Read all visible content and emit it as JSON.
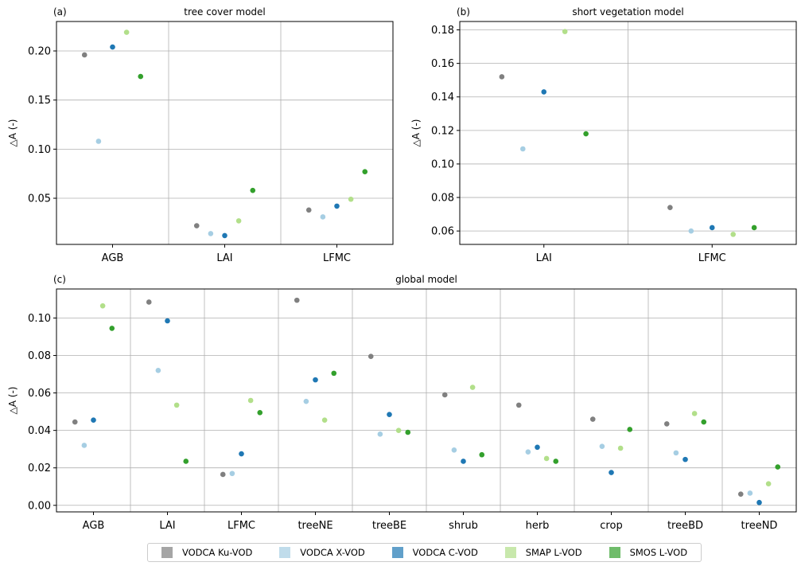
{
  "series": [
    {
      "name": "VODCA Ku-VOD",
      "color": "#808080"
    },
    {
      "name": "VODCA X-VOD",
      "color": "#a6cee3"
    },
    {
      "name": "VODCA C-VOD",
      "color": "#1f78b4"
    },
    {
      "name": "SMAP L-VOD",
      "color": "#b2df8a"
    },
    {
      "name": "SMOS L-VOD",
      "color": "#33a02c"
    }
  ],
  "chart_data": [
    {
      "type": "scatter",
      "panel_label": "(a)",
      "title": "tree cover model",
      "ylabel": "△A (-)",
      "categories": [
        "AGB",
        "LAI",
        "LFMC"
      ],
      "ylim": [
        0.003,
        0.23
      ],
      "yticks": [
        0.05,
        0.1,
        0.15,
        0.2
      ],
      "ytick_labels": [
        "0.05",
        "0.10",
        "0.15",
        "0.20"
      ],
      "grid": true,
      "series": [
        {
          "name": "VODCA Ku-VOD",
          "values": [
            0.196,
            0.022,
            0.038
          ]
        },
        {
          "name": "VODCA X-VOD",
          "values": [
            0.108,
            0.014,
            0.031
          ]
        },
        {
          "name": "VODCA C-VOD",
          "values": [
            0.204,
            0.012,
            0.042
          ]
        },
        {
          "name": "SMAP L-VOD",
          "values": [
            0.219,
            0.027,
            0.049
          ]
        },
        {
          "name": "SMOS L-VOD",
          "values": [
            0.174,
            0.058,
            0.077
          ]
        }
      ]
    },
    {
      "type": "scatter",
      "panel_label": "(b)",
      "title": "short vegetation model",
      "ylabel": "△A (-)",
      "categories": [
        "LAI",
        "LFMC"
      ],
      "ylim": [
        0.052,
        0.185
      ],
      "yticks": [
        0.06,
        0.08,
        0.1,
        0.12,
        0.14,
        0.16,
        0.18
      ],
      "ytick_labels": [
        "0.06",
        "0.08",
        "0.10",
        "0.12",
        "0.14",
        "0.16",
        "0.18"
      ],
      "grid": true,
      "series": [
        {
          "name": "VODCA Ku-VOD",
          "values": [
            0.152,
            0.074
          ]
        },
        {
          "name": "VODCA X-VOD",
          "values": [
            0.109,
            0.06
          ]
        },
        {
          "name": "VODCA C-VOD",
          "values": [
            0.143,
            0.062
          ]
        },
        {
          "name": "SMAP L-VOD",
          "values": [
            0.179,
            0.058
          ]
        },
        {
          "name": "SMOS L-VOD",
          "values": [
            0.118,
            0.062
          ]
        }
      ]
    },
    {
      "type": "scatter",
      "panel_label": "(c)",
      "title": "global model",
      "ylabel": "△A (-)",
      "categories": [
        "AGB",
        "LAI",
        "LFMC",
        "treeNE",
        "treeBE",
        "shrub",
        "herb",
        "crop",
        "treeBD",
        "treeND"
      ],
      "ylim": [
        -0.0035,
        0.1155
      ],
      "yticks": [
        0.0,
        0.02,
        0.04,
        0.06,
        0.08,
        0.1
      ],
      "ytick_labels": [
        "0.00",
        "0.02",
        "0.04",
        "0.06",
        "0.08",
        "0.10"
      ],
      "grid": true,
      "series": [
        {
          "name": "VODCA Ku-VOD",
          "values": [
            0.0445,
            0.1085,
            0.0165,
            0.1095,
            0.0795,
            0.059,
            0.0535,
            0.046,
            0.0435,
            0.006
          ]
        },
        {
          "name": "VODCA X-VOD",
          "values": [
            0.032,
            0.072,
            0.017,
            0.0555,
            0.038,
            0.0295,
            0.0285,
            0.0315,
            0.028,
            0.0065
          ]
        },
        {
          "name": "VODCA C-VOD",
          "values": [
            0.0455,
            0.0985,
            0.0275,
            0.067,
            0.0485,
            0.0235,
            0.031,
            0.0175,
            0.0245,
            0.0015
          ]
        },
        {
          "name": "SMAP L-VOD",
          "values": [
            0.1065,
            0.0535,
            0.056,
            0.0455,
            0.04,
            0.063,
            0.025,
            0.0305,
            0.049,
            0.0115
          ]
        },
        {
          "name": "SMOS L-VOD",
          "values": [
            0.0945,
            0.0235,
            0.0495,
            0.0705,
            0.039,
            0.027,
            0.0235,
            0.0405,
            0.0445,
            0.0205
          ]
        }
      ]
    }
  ]
}
